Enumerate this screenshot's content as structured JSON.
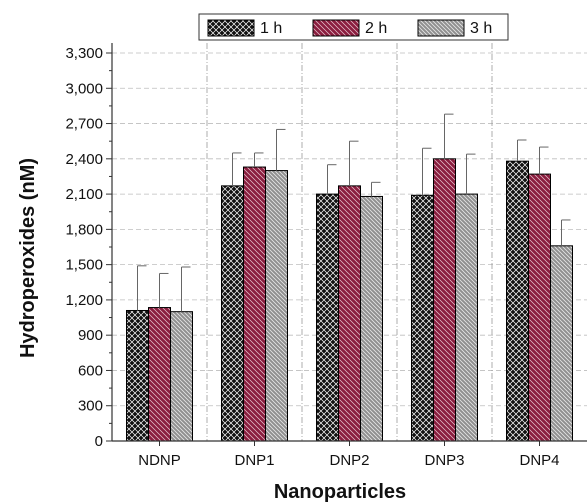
{
  "chart_data": {
    "type": "bar",
    "title": "",
    "xlabel": "Nanoparticles",
    "ylabel": "Hydroperoxides (nM)",
    "categories": [
      "NDNP",
      "DNP1",
      "DNP2",
      "DNP3",
      "DNP4"
    ],
    "ylim": [
      0,
      3300
    ],
    "yticks": [
      0,
      300,
      600,
      900,
      1200,
      1500,
      1800,
      2100,
      2400,
      2700,
      3000,
      3300
    ],
    "ytick_labels": [
      "0",
      "300",
      "600",
      "900",
      "1,200",
      "1,500",
      "1,800",
      "2,100",
      "2,400",
      "2,700",
      "3,000",
      "3,300"
    ],
    "grid": true,
    "legend_position": "top",
    "series": [
      {
        "name": "1 h",
        "color": "#111111",
        "pattern": "crosshatch",
        "values": [
          1110,
          2170,
          2100,
          2090,
          2380
        ],
        "errors": [
          380,
          280,
          250,
          400,
          180
        ]
      },
      {
        "name": "2 h",
        "color": "#8b1e3f",
        "pattern": "diagonal",
        "values": [
          1135,
          2330,
          2170,
          2400,
          2270
        ],
        "errors": [
          290,
          120,
          380,
          380,
          230
        ]
      },
      {
        "name": "3 h",
        "color": "#8f8f8f",
        "pattern": "diagonal",
        "values": [
          1100,
          2300,
          2080,
          2100,
          1660
        ],
        "errors": [
          380,
          350,
          120,
          340,
          220
        ]
      }
    ]
  }
}
